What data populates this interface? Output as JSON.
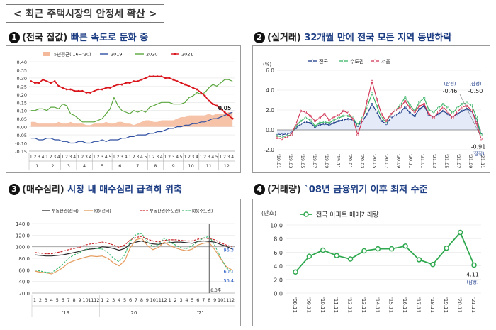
{
  "main_title": "< 최근 주택시장의 안정세 확산 >",
  "panels": [
    {
      "num": "1",
      "lead": "(전국 집값)",
      "rest": " 빠른 속도로 둔화 중"
    },
    {
      "num": "2",
      "lead": "(실거래)",
      "rest": " 32개월 만에 전국 모든 지역 동반하락"
    },
    {
      "num": "3",
      "lead": "(매수심리)",
      "rest": " 시장 내 매수심리 급격히 위축"
    },
    {
      "num": "4",
      "lead": "(거래량)",
      "rest": " `08년 금융위기 이후 최저 수준"
    }
  ],
  "chart_data": [
    {
      "id": "weekly-price",
      "type": "line",
      "ylim": [
        -0.15,
        0.4
      ],
      "yticks": [
        "0.40",
        "0.35",
        "0.30",
        "0.25",
        "0.20",
        "0.15",
        "0.10",
        "0.05",
        "0.00",
        "-0.05",
        "-0.10",
        "-0.15"
      ],
      "week_labels": [
        "1",
        "2",
        "3",
        "4",
        "1",
        "2",
        "3",
        "4",
        "1",
        "2",
        "3",
        "4",
        "1",
        "2",
        "3",
        "4",
        "1",
        "2",
        "3",
        "4",
        "5",
        "1",
        "2",
        "3",
        "4",
        "1",
        "2",
        "3",
        "4",
        "5",
        "1",
        "2",
        "3",
        "4",
        "1",
        "2",
        "3",
        "4",
        "5",
        "1",
        "2",
        "3",
        "4",
        "1",
        "2",
        "3",
        "4",
        "5",
        "1",
        "2",
        "3",
        "4"
      ],
      "months": [
        "1",
        "2",
        "3",
        "4",
        "5",
        "6",
        "7",
        "8",
        "9",
        "10",
        "11",
        "12"
      ],
      "legend": [
        "5년평균('16~'20)",
        "2019",
        "2020",
        "2021"
      ],
      "colors": {
        "avg": "#f4b99a",
        "y2019": "#2e4ea1",
        "y2020": "#5aa63d",
        "y2021": "#d9141b"
      },
      "annotation": "0.05",
      "series": [
        {
          "name": "5년평균('16~'20)",
          "values": [
            0.03,
            0.03,
            0.02,
            0.02,
            0.02,
            0.02,
            0.02,
            0.03,
            0.02,
            0.02,
            0.03,
            0.02,
            0.02,
            0.02,
            0.01,
            0.01,
            0.02,
            0.02,
            0.02,
            0.03,
            0.02,
            0.02,
            0.03,
            0.03,
            0.02,
            0.02,
            0.01,
            0.02,
            0.03,
            0.04,
            0.04,
            0.03,
            0.03,
            0.04,
            0.04,
            0.04,
            0.04,
            0.05,
            0.06,
            0.06,
            0.07,
            0.07,
            0.07,
            0.07,
            0.07,
            0.08,
            0.07,
            0.08,
            0.08,
            0.08,
            0.09,
            0.09
          ]
        },
        {
          "name": "2019",
          "values": [
            -0.07,
            -0.07,
            -0.08,
            -0.08,
            -0.07,
            -0.07,
            -0.08,
            -0.08,
            -0.09,
            -0.09,
            -0.1,
            -0.1,
            -0.09,
            -0.09,
            -0.1,
            -0.1,
            -0.09,
            -0.09,
            -0.08,
            -0.09,
            -0.08,
            -0.08,
            -0.08,
            -0.07,
            -0.07,
            -0.06,
            -0.06,
            -0.05,
            -0.05,
            -0.05,
            -0.04,
            -0.04,
            -0.03,
            -0.03,
            -0.02,
            -0.01,
            -0.01,
            0.0,
            0.0,
            0.01,
            0.01,
            0.02,
            0.02,
            0.03,
            0.03,
            0.04,
            0.05,
            0.05,
            0.06,
            0.07,
            0.08,
            0.09
          ]
        },
        {
          "name": "2020",
          "values": [
            0.1,
            0.1,
            0.11,
            0.11,
            0.1,
            0.12,
            0.12,
            0.11,
            0.14,
            0.13,
            0.08,
            0.07,
            0.05,
            0.03,
            0.03,
            0.03,
            0.03,
            0.04,
            0.05,
            0.08,
            0.11,
            0.18,
            0.13,
            0.1,
            0.09,
            0.08,
            0.1,
            0.09,
            0.1,
            0.09,
            0.12,
            0.13,
            0.14,
            0.15,
            0.15,
            0.15,
            0.14,
            0.14,
            0.14,
            0.15,
            0.18,
            0.19,
            0.21,
            0.2,
            0.21,
            0.24,
            0.26,
            0.25,
            0.27,
            0.29,
            0.29,
            0.28
          ]
        },
        {
          "name": "2021",
          "values": [
            0.28,
            0.27,
            0.27,
            0.29,
            0.28,
            0.27,
            0.28,
            0.25,
            0.24,
            0.23,
            0.23,
            0.22,
            0.22,
            0.22,
            0.21,
            0.21,
            0.22,
            0.23,
            0.23,
            0.24,
            0.24,
            0.25,
            0.26,
            0.26,
            0.27,
            0.27,
            0.28,
            0.28,
            0.29,
            0.3,
            0.31,
            0.31,
            0.31,
            0.31,
            0.3,
            0.3,
            0.29,
            0.28,
            0.27,
            0.26,
            0.25,
            0.24,
            0.23,
            0.21,
            0.19,
            0.16,
            0.14,
            0.13,
            0.11,
            0.09,
            0.07,
            0.05
          ]
        }
      ]
    },
    {
      "id": "actual-transaction",
      "type": "line",
      "ylabel": "(%)",
      "ylim": [
        -2.0,
        6.0
      ],
      "yticks": [
        "6.0",
        "4.0",
        "2.0",
        "0.0",
        "-2.0"
      ],
      "xlabels": [
        "'19.01",
        "'19.03",
        "'19.05",
        "'19.07",
        "'19.09",
        "'19.11",
        "'20.01",
        "'20.03",
        "'20.05",
        "'20.07",
        "'20.09",
        "'20.11",
        "'21.01",
        "'21.03",
        "'21.05",
        "'21.07",
        "'21.09",
        "'21.11"
      ],
      "legend": [
        "전국",
        "수도권",
        "서울"
      ],
      "colors": {
        "nation": "#1f3f8c",
        "capital": "#3fb66a",
        "seoul": "#d33a5a"
      },
      "annotations": {
        "nation": "-0.46",
        "capital": "-0.50",
        "seoul": "-0.91",
        "prelim": "(잠정)"
      },
      "series": [
        {
          "name": "전국",
          "values": [
            -0.4,
            -0.5,
            -0.4,
            -0.3,
            0.2,
            0.6,
            0.8,
            0.7,
            0.3,
            0.5,
            0.6,
            0.5,
            0.7,
            0.9,
            1.0,
            1.1,
            1.0,
            0.4,
            0.9,
            1.6,
            2.6,
            1.8,
            0.9,
            0.6,
            1.2,
            1.5,
            1.8,
            2.3,
            1.7,
            1.4,
            2.1,
            2.4,
            1.5,
            1.3,
            1.6,
            1.9,
            1.6,
            1.3,
            1.6,
            1.9,
            2.1,
            1.9,
            1.0,
            -0.46
          ]
        },
        {
          "name": "수도권",
          "values": [
            -0.6,
            -0.7,
            -0.6,
            -0.5,
            0.4,
            0.9,
            1.2,
            1.0,
            0.4,
            0.7,
            0.8,
            0.7,
            1.0,
            1.2,
            1.4,
            1.4,
            1.2,
            0.5,
            1.2,
            2.3,
            3.7,
            2.4,
            1.2,
            0.8,
            1.6,
            2.0,
            2.5,
            3.3,
            2.5,
            1.9,
            2.8,
            3.2,
            2.0,
            1.8,
            2.2,
            2.6,
            2.2,
            1.7,
            2.2,
            2.6,
            2.7,
            2.5,
            1.3,
            -0.5
          ]
        },
        {
          "name": "서울",
          "values": [
            -0.8,
            -0.9,
            -0.7,
            -0.5,
            0.6,
            1.9,
            1.8,
            1.4,
            0.9,
            1.2,
            1.6,
            1.0,
            1.3,
            1.5,
            1.9,
            1.7,
            1.1,
            -0.5,
            1.0,
            2.9,
            4.9,
            3.1,
            1.6,
            0.9,
            1.6,
            2.0,
            2.3,
            2.9,
            2.2,
            1.8,
            2.4,
            2.6,
            1.6,
            1.2,
            1.8,
            2.3,
            1.8,
            1.2,
            1.8,
            2.3,
            2.4,
            2.0,
            0.7,
            -0.91
          ]
        }
      ]
    },
    {
      "id": "buying-sentiment",
      "type": "line",
      "ylim": [
        20,
        140
      ],
      "yticks": [
        "140.0",
        "120.0",
        "100.0",
        "80.0",
        "60.0",
        "40.0",
        "20.0"
      ],
      "month_labels": [
        "1",
        "2",
        "3",
        "4",
        "5",
        "6",
        "7",
        "8",
        "9",
        "10",
        "11",
        "12",
        "1",
        "2",
        "3",
        "4",
        "5",
        "6",
        "7",
        "8",
        "9",
        "10",
        "11",
        "12",
        "1",
        "2",
        "3",
        "4",
        "5",
        "6",
        "7",
        "8",
        "9",
        "10",
        "11",
        "12"
      ],
      "year_labels": [
        "'19",
        "'20",
        "'21"
      ],
      "legend": [
        "부동산원(전국)",
        "KB(전국)",
        "부동산원(수도권)",
        "KB(수도권)"
      ],
      "colors": {
        "reb_nat": "#2b2b2b",
        "kb_nat": "#e39a5b",
        "reb_cap": "#c9282d",
        "kb_cap": "#3dbb73"
      },
      "annotations": {
        "reb_nat": "96.3",
        "kb_nat": "60.1",
        "kb_cap": "56.4",
        "vline": "8.3주"
      },
      "series": [
        {
          "name": "부동산원(전국)",
          "values": [
            86,
            85,
            84,
            84,
            85,
            86,
            88,
            90,
            92,
            95,
            96,
            97,
            100,
            99,
            97,
            94,
            97,
            105,
            108,
            110,
            107,
            105,
            104,
            106,
            107,
            108,
            108,
            107,
            106,
            109,
            110,
            109,
            108,
            104,
            101,
            96.3
          ]
        },
        {
          "name": "KB(전국)",
          "values": [
            58,
            56,
            55,
            53,
            58,
            64,
            72,
            76,
            79,
            82,
            84,
            83,
            84,
            80,
            72,
            67,
            76,
            99,
            112,
            115,
            102,
            95,
            99,
            108,
            102,
            98,
            95,
            93,
            96,
            103,
            106,
            107,
            95,
            80,
            66,
            60.1
          ]
        },
        {
          "name": "부동산원(수도권)",
          "values": [
            90,
            89,
            88,
            88,
            90,
            92,
            95,
            97,
            99,
            103,
            105,
            106,
            108,
            106,
            103,
            99,
            103,
            112,
            116,
            118,
            113,
            110,
            108,
            111,
            112,
            112,
            111,
            110,
            110,
            113,
            115,
            114,
            112,
            107,
            103,
            100
          ]
        },
        {
          "name": "KB(수도권)",
          "values": [
            60,
            58,
            56,
            55,
            62,
            70,
            80,
            86,
            90,
            95,
            98,
            97,
            96,
            90,
            80,
            74,
            86,
            110,
            121,
            123,
            109,
            100,
            104,
            115,
            108,
            103,
            98,
            97,
            102,
            109,
            115,
            118,
            102,
            82,
            64,
            56.4
          ]
        }
      ]
    },
    {
      "id": "transaction-volume",
      "type": "line",
      "ylabel": "(만호)",
      "ylim": [
        0,
        10
      ],
      "yticks": [
        "10.0",
        "8.0",
        "6.0",
        "4.0",
        "2.0",
        "0.0"
      ],
      "categories": [
        "'08.11",
        "'09.11",
        "'10.11",
        "'11.11",
        "'12.11",
        "'13.11",
        "'14.11",
        "'15.11",
        "'16.11",
        "'17.11",
        "'18.11",
        "'19.11",
        "'20.11",
        "'21.11"
      ],
      "legend": [
        "전국 아파트 매매거래량"
      ],
      "colors": {
        "line": "#2fa84f"
      },
      "annotations": {
        "last": "4.11",
        "prelim": "(잠정)"
      },
      "series": [
        {
          "name": "전국 아파트 매매거래량",
          "values": [
            3.1,
            5.4,
            6.3,
            5.5,
            5.0,
            6.2,
            6.5,
            6.5,
            6.9,
            4.9,
            4.2,
            6.6,
            8.9,
            4.11
          ]
        }
      ]
    }
  ]
}
